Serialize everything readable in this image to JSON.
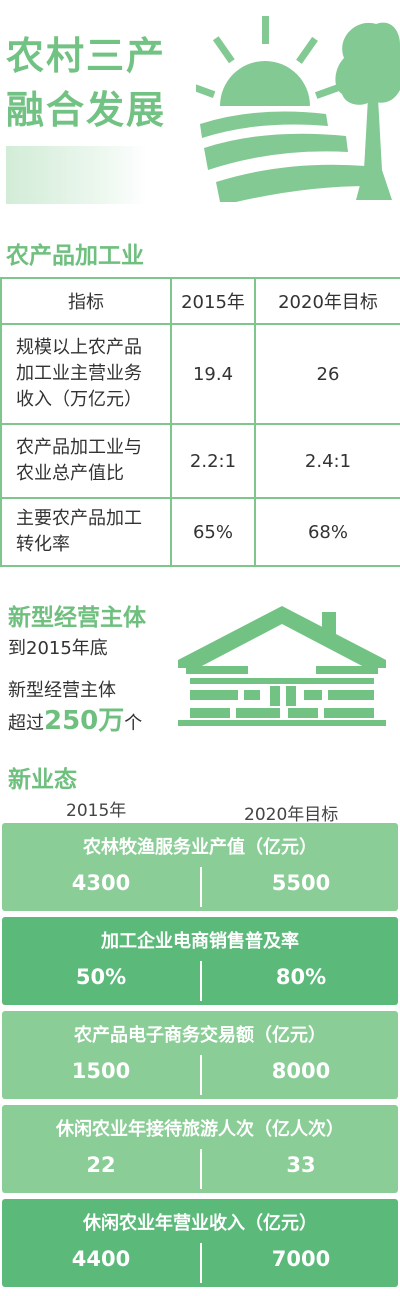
{
  "header": {
    "title_line1": "农村三产",
    "title_line2": "融合发展"
  },
  "section1": {
    "title": "农产品加工业",
    "columns": [
      "指标",
      "2015年",
      "2020年目标"
    ],
    "rows": [
      {
        "indicator": [
          "规模以上农产品",
          "加工业主营业务",
          "收入（万亿元）"
        ],
        "y2015": "19.4",
        "y2020": "26"
      },
      {
        "indicator": [
          "农产品加工业与",
          "农业总产值比"
        ],
        "y2015": "2.2:1",
        "y2020": "2.4:1"
      },
      {
        "indicator": [
          "主要农产品加工",
          "转化率"
        ],
        "y2015": "65%",
        "y2020": "68%"
      }
    ]
  },
  "section2": {
    "title": "新型经营主体",
    "line1": "到2015年底",
    "line2": "新型经营主体",
    "line3_prefix": "超过",
    "line3_number": "250万",
    "line3_suffix": "个"
  },
  "section3": {
    "title": "新业态",
    "col_2015": "2015年",
    "col_2020": "2020年目标",
    "cards": [
      {
        "title": "农林牧渔服务业产值（亿元）",
        "v2015": "4300",
        "v2020": "5500",
        "tone": "light"
      },
      {
        "title": "加工企业电商销售普及率",
        "v2015": "50%",
        "v2020": "80%",
        "tone": "dark"
      },
      {
        "title": "农产品电子商务交易额（亿元）",
        "v2015": "1500",
        "v2020": "8000",
        "tone": "light"
      },
      {
        "title": "休闲农业年接待旅游人次（亿人次）",
        "v2015": "22",
        "v2020": "33",
        "tone": "light"
      },
      {
        "title": "休闲农业年营业收入（亿元）",
        "v2015": "4400",
        "v2020": "7000",
        "tone": "dark"
      }
    ]
  },
  "colors": {
    "brand_green": "#72c284",
    "card_light": "#8acd96",
    "card_dark": "#5bb97a"
  }
}
